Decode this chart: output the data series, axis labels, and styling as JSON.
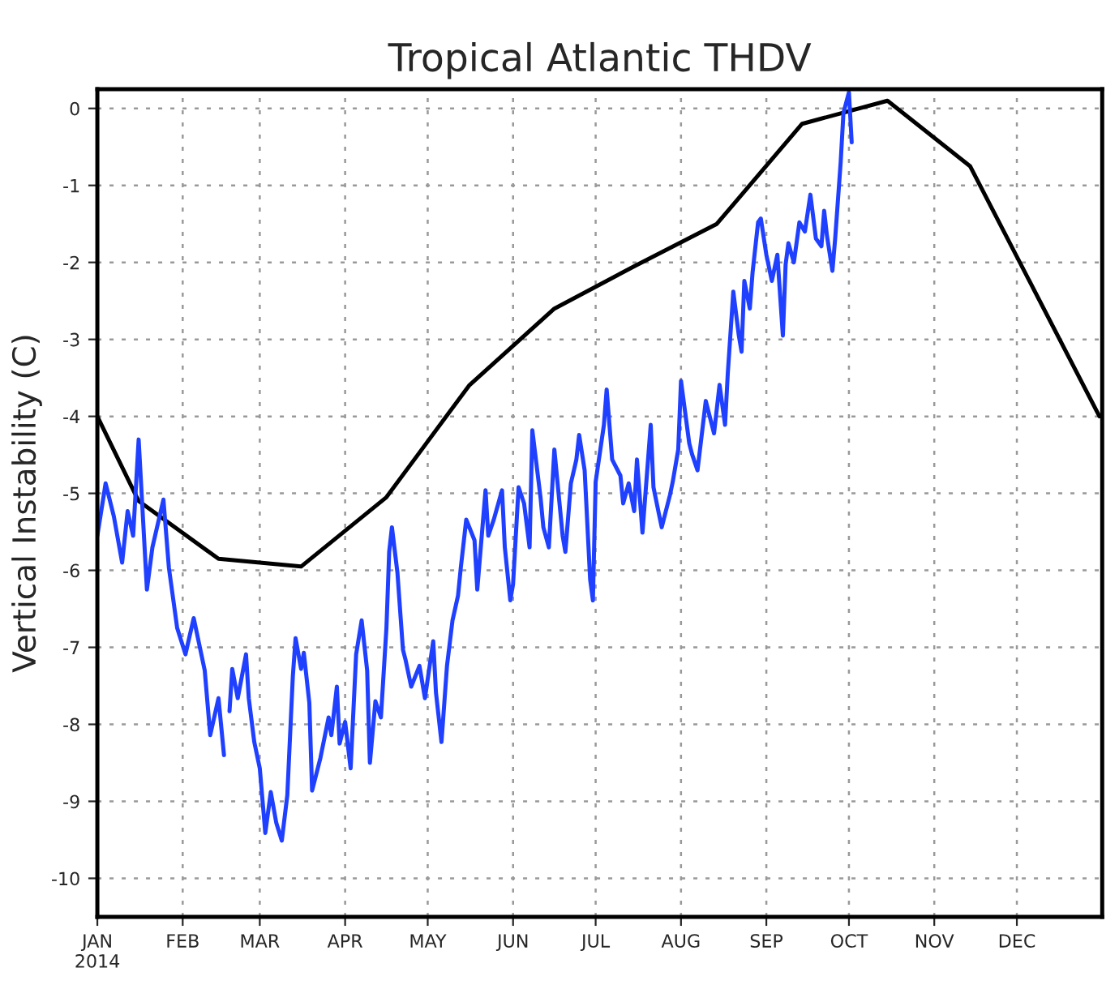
{
  "chart_data": {
    "type": "line",
    "title": "Tropical Atlantic THDV",
    "ylabel": "Vertical Instability (C)",
    "xlim": [
      "2014-01-01",
      "2015-01-01"
    ],
    "ylim": [
      -10.5,
      0.25
    ],
    "xticks": [
      {
        "value": "2014-01-01",
        "label": "JAN\n2014"
      },
      {
        "value": "2014-02-01",
        "label": "FEB"
      },
      {
        "value": "2014-03-01",
        "label": "MAR"
      },
      {
        "value": "2014-04-01",
        "label": "APR"
      },
      {
        "value": "2014-05-01",
        "label": "MAY"
      },
      {
        "value": "2014-06-01",
        "label": "JUN"
      },
      {
        "value": "2014-07-01",
        "label": "JUL"
      },
      {
        "value": "2014-08-01",
        "label": "AUG"
      },
      {
        "value": "2014-09-01",
        "label": "SEP"
      },
      {
        "value": "2014-10-01",
        "label": "OCT"
      },
      {
        "value": "2014-11-01",
        "label": "NOV"
      },
      {
        "value": "2014-12-01",
        "label": "DEC"
      }
    ],
    "yticks": [
      -10,
      -9,
      -8,
      -7,
      -6,
      -5,
      -4,
      -3,
      -2,
      -1,
      0
    ],
    "grid": true,
    "legend": false,
    "marker": "none",
    "line_style": "solid",
    "series": [
      {
        "color": "#000000",
        "x": [
          "2014-01-01",
          "2014-01-16",
          "2014-02-14",
          "2014-03-16",
          "2014-04-16",
          "2014-05-16",
          "2014-06-16",
          "2014-07-15",
          "2014-08-14",
          "2014-09-14",
          "2014-10-15",
          "2014-11-14",
          "2014-12-31"
        ],
        "values": [
          -4.0,
          -5.1,
          -5.85,
          -5.95,
          -5.05,
          -3.6,
          -2.6,
          -2.05,
          -1.5,
          -0.2,
          0.1,
          -0.75,
          -4.0
        ]
      },
      {
        "color": "#2040ff",
        "x": [
          "2014-01-01",
          "2014-01-04",
          "2014-01-07",
          "2014-01-10",
          "2014-01-12",
          "2014-01-14",
          "2014-01-16",
          "2014-01-19",
          "2014-01-21",
          "2014-01-25",
          "2014-01-27",
          "2014-01-30",
          "2014-02-02",
          "2014-02-05",
          "2014-02-09",
          "2014-02-11",
          "2014-02-14",
          "2014-02-16",
          "2014-02-17",
          "2014-02-18",
          "2014-02-19",
          "2014-02-21",
          "2014-02-24",
          "2014-02-25",
          "2014-02-27",
          "2014-03-01",
          "2014-03-03",
          "2014-03-05",
          "2014-03-07",
          "2014-03-09",
          "2014-03-11",
          "2014-03-13",
          "2014-03-14",
          "2014-03-16",
          "2014-03-17",
          "2014-03-19",
          "2014-03-20",
          "2014-03-23",
          "2014-03-26",
          "2014-03-27",
          "2014-03-29",
          "2014-03-30",
          "2014-04-01",
          "2014-04-03",
          "2014-04-05",
          "2014-04-07",
          "2014-04-09",
          "2014-04-10",
          "2014-04-12",
          "2014-04-14",
          "2014-04-16",
          "2014-04-17",
          "2014-04-18",
          "2014-04-20",
          "2014-04-22",
          "2014-04-23",
          "2014-04-25",
          "2014-04-28",
          "2014-04-30",
          "2014-05-03",
          "2014-05-04",
          "2014-05-06",
          "2014-05-08",
          "2014-05-10",
          "2014-05-12",
          "2014-05-13",
          "2014-05-15",
          "2014-05-18",
          "2014-05-19",
          "2014-05-22",
          "2014-05-23",
          "2014-05-25",
          "2014-05-28",
          "2014-05-29",
          "2014-05-31",
          "2014-06-01",
          "2014-06-03",
          "2014-06-05",
          "2014-06-07",
          "2014-06-08",
          "2014-06-11",
          "2014-06-12",
          "2014-06-14",
          "2014-06-16",
          "2014-06-19",
          "2014-06-20",
          "2014-06-22",
          "2014-06-24",
          "2014-06-25",
          "2014-06-27",
          "2014-06-29",
          "2014-06-30",
          "2014-07-01",
          "2014-07-04",
          "2014-07-05",
          "2014-07-07",
          "2014-07-10",
          "2014-07-11",
          "2014-07-13",
          "2014-07-15",
          "2014-07-16",
          "2014-07-18",
          "2014-07-21",
          "2014-07-22",
          "2014-07-24",
          "2014-07-25",
          "2014-07-28",
          "2014-07-29",
          "2014-07-31",
          "2014-08-01",
          "2014-08-04",
          "2014-08-05",
          "2014-08-07",
          "2014-08-10",
          "2014-08-13",
          "2014-08-15",
          "2014-08-17",
          "2014-08-18",
          "2014-08-20",
          "2014-08-22",
          "2014-08-23",
          "2014-08-24",
          "2014-08-26",
          "2014-08-27",
          "2014-08-29",
          "2014-08-30",
          "2014-09-01",
          "2014-09-03",
          "2014-09-05",
          "2014-09-07",
          "2014-09-08",
          "2014-09-09",
          "2014-09-11",
          "2014-09-13",
          "2014-09-15",
          "2014-09-17",
          "2014-09-19",
          "2014-09-21",
          "2014-09-22",
          "2014-09-23",
          "2014-09-25",
          "2014-09-26",
          "2014-09-28",
          "2014-09-29",
          "2014-10-01",
          "2014-10-02"
        ],
        "values": [
          -5.55,
          -4.87,
          -5.3,
          -5.9,
          -5.23,
          -5.55,
          -4.3,
          -6.25,
          -5.7,
          -5.08,
          -5.97,
          -6.75,
          -7.09,
          -6.62,
          -7.3,
          -8.14,
          -7.66,
          -8.4,
          null,
          -7.83,
          -7.28,
          -7.66,
          -7.09,
          -7.66,
          -8.23,
          -8.57,
          -9.41,
          -8.88,
          -9.28,
          -9.51,
          -8.92,
          -7.38,
          -6.88,
          -7.28,
          -7.07,
          -7.72,
          -8.86,
          -8.44,
          -7.91,
          -8.14,
          -7.51,
          -8.25,
          -7.97,
          -8.57,
          -7.09,
          -6.65,
          -7.3,
          -8.5,
          -7.7,
          -7.91,
          -6.75,
          -5.76,
          -5.44,
          -6.03,
          -7.03,
          -7.17,
          -7.51,
          -7.24,
          -7.66,
          -6.92,
          -7.59,
          -8.23,
          -7.24,
          -6.65,
          -6.33,
          -5.97,
          -5.34,
          -5.61,
          -6.25,
          -4.96,
          -5.55,
          -5.34,
          -4.96,
          -5.7,
          -6.39,
          -6.18,
          -4.92,
          -5.13,
          -5.7,
          -4.18,
          -5.06,
          -5.44,
          -5.7,
          -4.43,
          -5.55,
          -5.76,
          -4.87,
          -4.56,
          -4.24,
          -4.7,
          -6.12,
          -6.39,
          -4.85,
          -4.11,
          -3.65,
          -4.56,
          -4.77,
          -5.13,
          -4.87,
          -5.23,
          -4.56,
          -5.51,
          -4.11,
          -4.92,
          -5.27,
          -5.44,
          -5.02,
          -4.85,
          -4.43,
          -3.54,
          -4.35,
          -4.49,
          -4.7,
          -3.8,
          -4.22,
          -3.59,
          -4.11,
          -3.44,
          -2.38,
          -2.95,
          -3.16,
          -2.24,
          -2.6,
          -2.13,
          -1.48,
          -1.43,
          -1.9,
          -2.24,
          -1.9,
          -2.95,
          -2.03,
          -1.75,
          -2.0,
          -1.48,
          -1.6,
          -1.12,
          -1.69,
          -1.79,
          -1.33,
          -1.65,
          -2.11,
          -1.69,
          -0.7,
          -0.06,
          0.21,
          -0.44
        ]
      }
    ]
  }
}
